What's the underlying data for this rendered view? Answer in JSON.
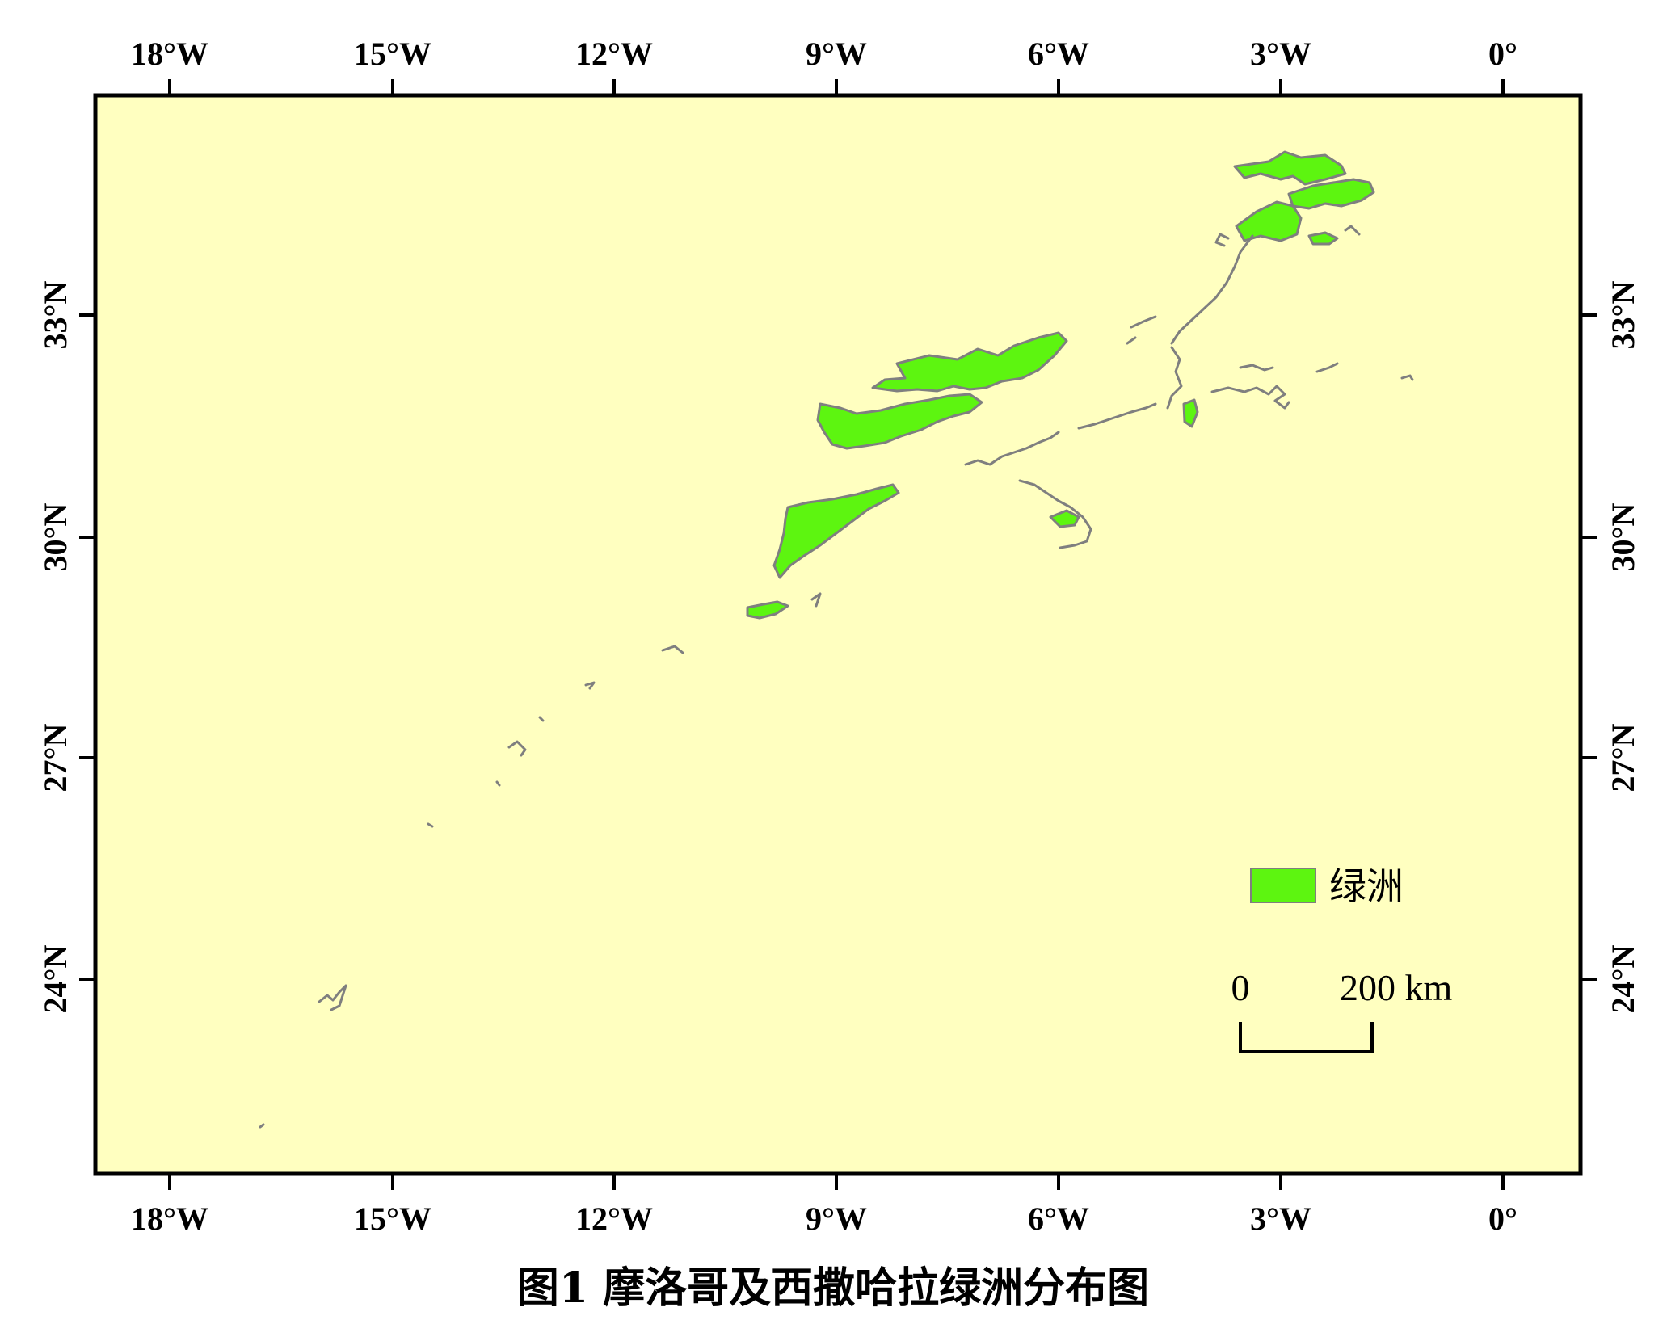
{
  "map": {
    "longitude_labels": [
      "18°W",
      "15°W",
      "12°W",
      "9°W",
      "6°W",
      "3°W",
      "0°"
    ],
    "latitude_labels": [
      "33°N",
      "30°N",
      "27°N",
      "24°N"
    ],
    "colors": {
      "background": "#ffffc0",
      "oasis_fill": "#5df510",
      "oasis_outline": "#7f7f7f",
      "frame": "#000000"
    }
  },
  "legend": {
    "label": "绿洲",
    "swatch_color": "#5df510"
  },
  "scale_bar": {
    "start_label": "0",
    "end_label": "200 km"
  },
  "caption": "图1  摩洛哥及西撒哈拉绿洲分布图"
}
